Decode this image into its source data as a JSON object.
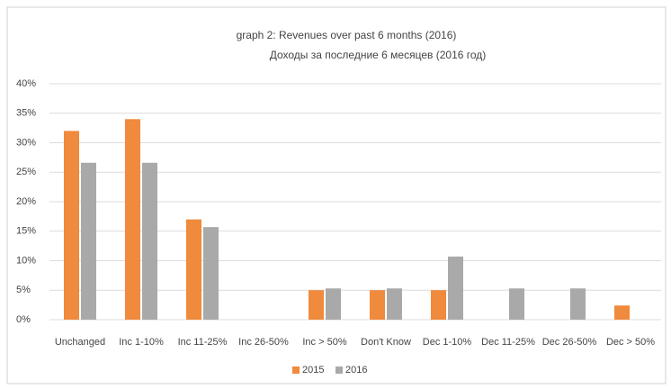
{
  "chart_data": {
    "type": "bar",
    "title": "graph 2: Revenues over past 6 months (2016)",
    "subtitle": "Доходы за последние 6 месяцев (2016 год)",
    "categories": [
      "Unchanged",
      "Inc 1-10%",
      "Inc 11-25%",
      "Inc 26-50%",
      "Inc > 50%",
      "Don't Know",
      "Dec 1-10%",
      "Dec 11-25%",
      "Dec 26-50%",
      "Dec > 50%"
    ],
    "series": [
      {
        "name": "2015",
        "color": "#f08a3c",
        "values": [
          32,
          34,
          17,
          0,
          5,
          5,
          5,
          0,
          0,
          2.4
        ]
      },
      {
        "name": "2016",
        "color": "#a9a9a9",
        "values": [
          26.6,
          26.6,
          15.7,
          0,
          5.3,
          5.3,
          10.7,
          5.3,
          5.3,
          0
        ]
      }
    ],
    "ylim": [
      0,
      40
    ],
    "yticks": [
      {
        "value": 0,
        "label": "0%"
      },
      {
        "value": 5,
        "label": "5%"
      },
      {
        "value": 10,
        "label": "10%"
      },
      {
        "value": 15,
        "label": "15%"
      },
      {
        "value": 20,
        "label": "20%"
      },
      {
        "value": 25,
        "label": "25%"
      },
      {
        "value": 30,
        "label": "30%"
      },
      {
        "value": 35,
        "label": "35%"
      },
      {
        "value": 40,
        "label": "40%"
      }
    ],
    "grid": true,
    "legend": "bottom"
  }
}
